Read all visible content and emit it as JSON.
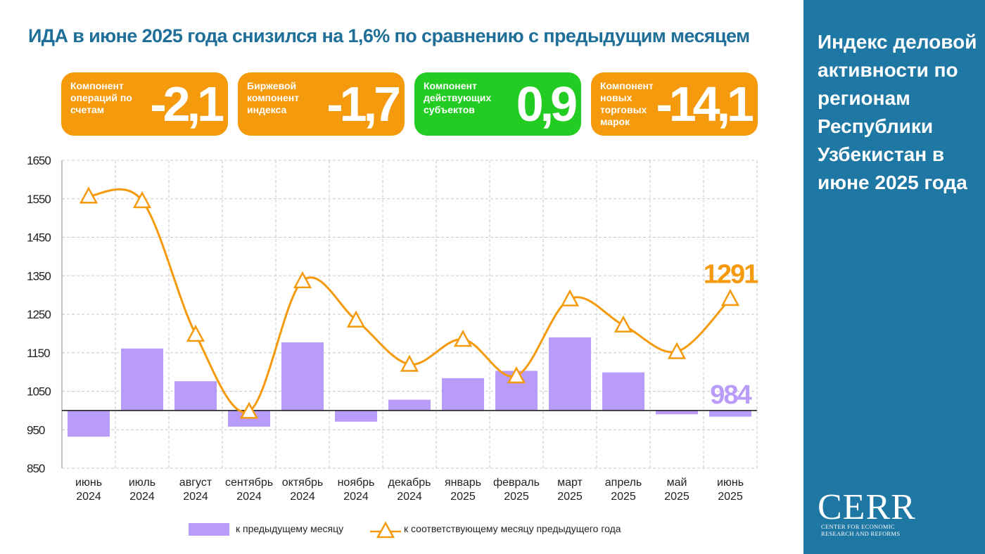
{
  "header": {
    "title": "ИДА в июне 2025 года снизился на 1,6% по сравнению с предыдущим месяцем"
  },
  "cards": [
    {
      "label": "Компонент операций по счетам",
      "value": "-2,1",
      "color": "#f59a0c"
    },
    {
      "label": "Биржевой компонент индекса",
      "value": "-1,7",
      "color": "#f59a0c"
    },
    {
      "label": "Компонент действующих субъектов",
      "value": "0,9",
      "color": "#22cc22"
    },
    {
      "label": "Компонент новых торговых марок",
      "value": "-14,1",
      "color": "#f59a0c"
    }
  ],
  "sidebar": {
    "title": "Индекс деловой активности по регионам Республики Узбекистан в июне 2025 года",
    "background": "#1f77a3"
  },
  "logo": {
    "word": "CERR",
    "sub": "CENTER FOR ECONOMIC RESEARCH AND REFORMS"
  },
  "legend": {
    "bar": "к предыдущему месяцу",
    "line": "к соответствующему месяцу предыдущего года"
  },
  "chart_data": {
    "type": "bar",
    "categories": [
      [
        "июнь",
        "2024"
      ],
      [
        "июль",
        "2024"
      ],
      [
        "август",
        "2024"
      ],
      [
        "сентябрь",
        "2024"
      ],
      [
        "октябрь",
        "2024"
      ],
      [
        "ноябрь",
        "2024"
      ],
      [
        "декабрь",
        "2024"
      ],
      [
        "январь",
        "2025"
      ],
      [
        "февраль",
        "2025"
      ],
      [
        "март",
        "2025"
      ],
      [
        "апрель",
        "2025"
      ],
      [
        "май",
        "2025"
      ],
      [
        "июнь",
        "2025"
      ]
    ],
    "ylim": [
      850,
      1650
    ],
    "yticks": [
      850,
      950,
      1050,
      1150,
      1250,
      1350,
      1450,
      1550,
      1650
    ],
    "baseline": 1000,
    "grid": true,
    "series": [
      {
        "name": "к предыдущему месяцу",
        "type": "bar",
        "color": "#b99bfa",
        "values": [
          932,
          1161,
          1076,
          958,
          1177,
          971,
          1028,
          1084,
          1103,
          1190,
          1099,
          990,
          984
        ]
      },
      {
        "name": "к соответствующему месяцу предыдущего года",
        "type": "line",
        "marker": "triangle",
        "color": "#f59a0c",
        "values": [
          1557,
          1545,
          1198,
          998,
          1337,
          1235,
          1120,
          1185,
          1090,
          1290,
          1222,
          1153,
          1291
        ]
      }
    ],
    "annotations": [
      {
        "label": "1291",
        "series": 1,
        "index": 12,
        "color": "#f59a0c"
      },
      {
        "label": "984",
        "series": 0,
        "index": 12,
        "color": "#b99bfa"
      }
    ]
  }
}
